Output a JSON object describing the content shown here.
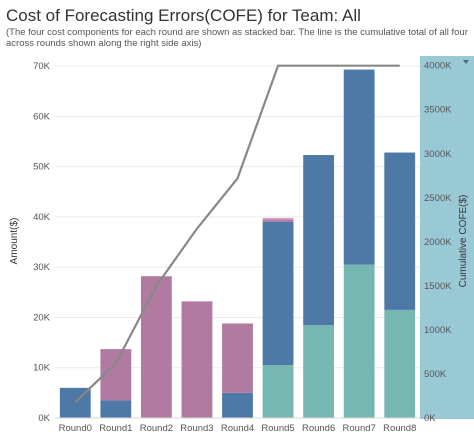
{
  "chart_data": {
    "type": "bar",
    "title": "Cost of Forecasting Errors(COFE) for Team: All",
    "subtitle": "(The  four cost components for each round are shown as stacked bar. The line is the cumulative total of all four across rounds shown along the right side axis)",
    "xlabel": "",
    "ylabel": "Amount($)",
    "y2label": "Cumulative COFE($)",
    "categories": [
      "Round0",
      "Round1",
      "Round2",
      "Round3",
      "Round4",
      "Round5",
      "Round6",
      "Round7",
      "Round8"
    ],
    "ylim": [
      0,
      72000
    ],
    "y2lim": [
      0,
      4110000
    ],
    "yticks": [
      {
        "v": 0,
        "label": "0K"
      },
      {
        "v": 10000,
        "label": "10K"
      },
      {
        "v": 20000,
        "label": "20K"
      },
      {
        "v": 30000,
        "label": "30K"
      },
      {
        "v": 40000,
        "label": "40K"
      },
      {
        "v": 50000,
        "label": "50K"
      },
      {
        "v": 60000,
        "label": "60K"
      },
      {
        "v": 70000,
        "label": "70K"
      }
    ],
    "y2ticks": [
      {
        "v": 0,
        "label": "0K"
      },
      {
        "v": 500000,
        "label": "500K"
      },
      {
        "v": 1000000,
        "label": "1000K"
      },
      {
        "v": 1500000,
        "label": "1500K"
      },
      {
        "v": 2000000,
        "label": "2000K"
      },
      {
        "v": 2500000,
        "label": "2500K"
      },
      {
        "v": 3000000,
        "label": "3000K"
      },
      {
        "v": 3500000,
        "label": "3500K"
      },
      {
        "v": 4000000,
        "label": "4000K"
      }
    ],
    "series": [
      {
        "color": "#76b7b2",
        "values": [
          0,
          0,
          0,
          0,
          0,
          10500,
          18500,
          30500,
          21500
        ]
      },
      {
        "color": "#4e79a7",
        "values": [
          6000,
          3500,
          0,
          0,
          5000,
          28500,
          33800,
          38800,
          31300
        ]
      },
      {
        "color": "#b07aa1",
        "values": [
          0,
          10200,
          28200,
          23200,
          13800,
          500,
          0,
          0,
          0
        ]
      },
      {
        "color": "#d4a6c8",
        "values": [
          0,
          0,
          0,
          0,
          0,
          300,
          0,
          0,
          0
        ]
      }
    ],
    "line": {
      "color": "#888888",
      "values": [
        180000,
        620000,
        1500000,
        2150000,
        2720000,
        4000000,
        4000000,
        4000000,
        4000000
      ]
    },
    "grid": true,
    "colors": {
      "right_axis_band": "#9ac9d6",
      "grid": "#ececec"
    }
  }
}
